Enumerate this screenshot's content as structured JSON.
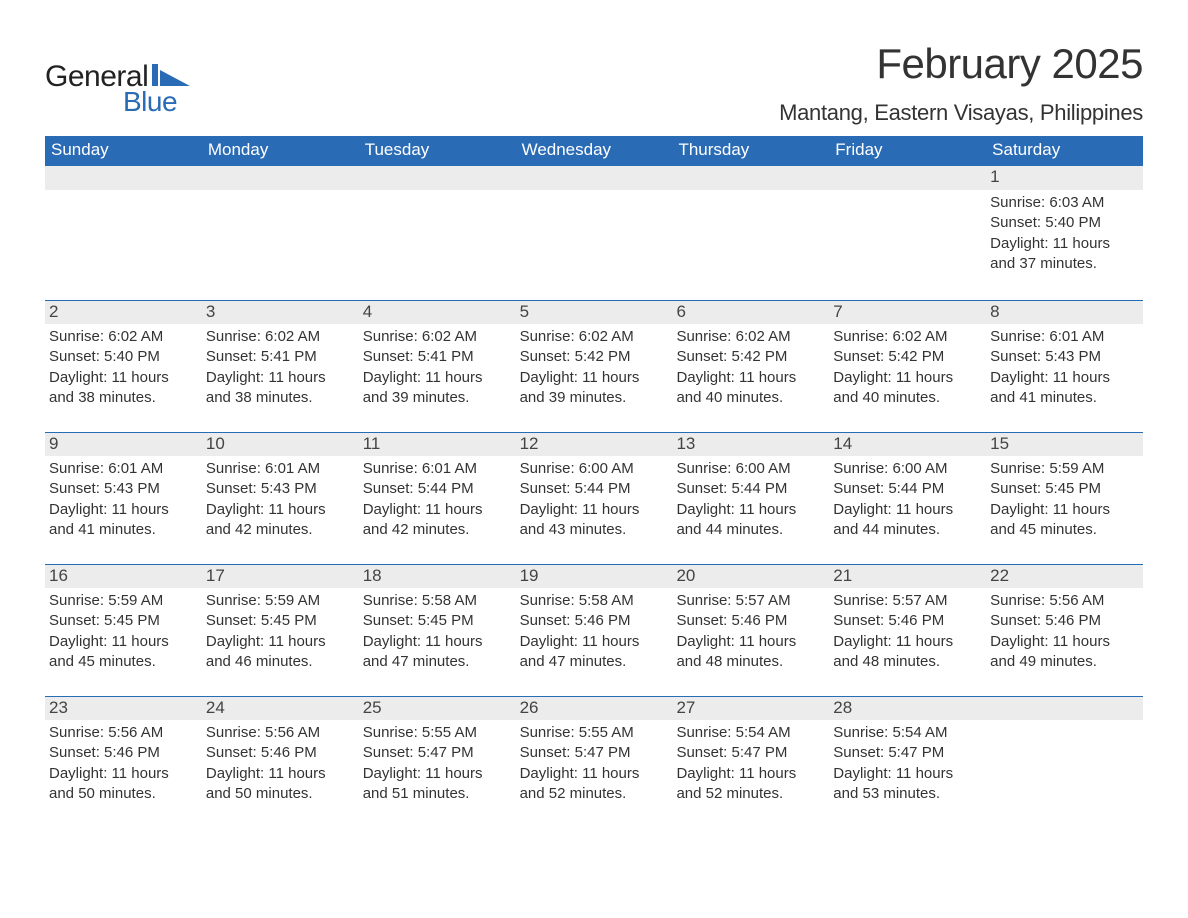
{
  "logo": {
    "general": "General",
    "blue": "Blue"
  },
  "title": "February 2025",
  "location": "Mantang, Eastern Visayas, Philippines",
  "colors": {
    "header_bg": "#2a6bb5",
    "header_text": "#ffffff",
    "row_border": "#2a6bb5",
    "daynum_bg": "#ececec",
    "text": "#333333",
    "page_bg": "#ffffff"
  },
  "day_names": [
    "Sunday",
    "Monday",
    "Tuesday",
    "Wednesday",
    "Thursday",
    "Friday",
    "Saturday"
  ],
  "weeks": [
    [
      {
        "n": "",
        "sunrise": "",
        "sunset": "",
        "daylight": ""
      },
      {
        "n": "",
        "sunrise": "",
        "sunset": "",
        "daylight": ""
      },
      {
        "n": "",
        "sunrise": "",
        "sunset": "",
        "daylight": ""
      },
      {
        "n": "",
        "sunrise": "",
        "sunset": "",
        "daylight": ""
      },
      {
        "n": "",
        "sunrise": "",
        "sunset": "",
        "daylight": ""
      },
      {
        "n": "",
        "sunrise": "",
        "sunset": "",
        "daylight": ""
      },
      {
        "n": "1",
        "sunrise": "Sunrise: 6:03 AM",
        "sunset": "Sunset: 5:40 PM",
        "daylight": "Daylight: 11 hours and 37 minutes."
      }
    ],
    [
      {
        "n": "2",
        "sunrise": "Sunrise: 6:02 AM",
        "sunset": "Sunset: 5:40 PM",
        "daylight": "Daylight: 11 hours and 38 minutes."
      },
      {
        "n": "3",
        "sunrise": "Sunrise: 6:02 AM",
        "sunset": "Sunset: 5:41 PM",
        "daylight": "Daylight: 11 hours and 38 minutes."
      },
      {
        "n": "4",
        "sunrise": "Sunrise: 6:02 AM",
        "sunset": "Sunset: 5:41 PM",
        "daylight": "Daylight: 11 hours and 39 minutes."
      },
      {
        "n": "5",
        "sunrise": "Sunrise: 6:02 AM",
        "sunset": "Sunset: 5:42 PM",
        "daylight": "Daylight: 11 hours and 39 minutes."
      },
      {
        "n": "6",
        "sunrise": "Sunrise: 6:02 AM",
        "sunset": "Sunset: 5:42 PM",
        "daylight": "Daylight: 11 hours and 40 minutes."
      },
      {
        "n": "7",
        "sunrise": "Sunrise: 6:02 AM",
        "sunset": "Sunset: 5:42 PM",
        "daylight": "Daylight: 11 hours and 40 minutes."
      },
      {
        "n": "8",
        "sunrise": "Sunrise: 6:01 AM",
        "sunset": "Sunset: 5:43 PM",
        "daylight": "Daylight: 11 hours and 41 minutes."
      }
    ],
    [
      {
        "n": "9",
        "sunrise": "Sunrise: 6:01 AM",
        "sunset": "Sunset: 5:43 PM",
        "daylight": "Daylight: 11 hours and 41 minutes."
      },
      {
        "n": "10",
        "sunrise": "Sunrise: 6:01 AM",
        "sunset": "Sunset: 5:43 PM",
        "daylight": "Daylight: 11 hours and 42 minutes."
      },
      {
        "n": "11",
        "sunrise": "Sunrise: 6:01 AM",
        "sunset": "Sunset: 5:44 PM",
        "daylight": "Daylight: 11 hours and 42 minutes."
      },
      {
        "n": "12",
        "sunrise": "Sunrise: 6:00 AM",
        "sunset": "Sunset: 5:44 PM",
        "daylight": "Daylight: 11 hours and 43 minutes."
      },
      {
        "n": "13",
        "sunrise": "Sunrise: 6:00 AM",
        "sunset": "Sunset: 5:44 PM",
        "daylight": "Daylight: 11 hours and 44 minutes."
      },
      {
        "n": "14",
        "sunrise": "Sunrise: 6:00 AM",
        "sunset": "Sunset: 5:44 PM",
        "daylight": "Daylight: 11 hours and 44 minutes."
      },
      {
        "n": "15",
        "sunrise": "Sunrise: 5:59 AM",
        "sunset": "Sunset: 5:45 PM",
        "daylight": "Daylight: 11 hours and 45 minutes."
      }
    ],
    [
      {
        "n": "16",
        "sunrise": "Sunrise: 5:59 AM",
        "sunset": "Sunset: 5:45 PM",
        "daylight": "Daylight: 11 hours and 45 minutes."
      },
      {
        "n": "17",
        "sunrise": "Sunrise: 5:59 AM",
        "sunset": "Sunset: 5:45 PM",
        "daylight": "Daylight: 11 hours and 46 minutes."
      },
      {
        "n": "18",
        "sunrise": "Sunrise: 5:58 AM",
        "sunset": "Sunset: 5:45 PM",
        "daylight": "Daylight: 11 hours and 47 minutes."
      },
      {
        "n": "19",
        "sunrise": "Sunrise: 5:58 AM",
        "sunset": "Sunset: 5:46 PM",
        "daylight": "Daylight: 11 hours and 47 minutes."
      },
      {
        "n": "20",
        "sunrise": "Sunrise: 5:57 AM",
        "sunset": "Sunset: 5:46 PM",
        "daylight": "Daylight: 11 hours and 48 minutes."
      },
      {
        "n": "21",
        "sunrise": "Sunrise: 5:57 AM",
        "sunset": "Sunset: 5:46 PM",
        "daylight": "Daylight: 11 hours and 48 minutes."
      },
      {
        "n": "22",
        "sunrise": "Sunrise: 5:56 AM",
        "sunset": "Sunset: 5:46 PM",
        "daylight": "Daylight: 11 hours and 49 minutes."
      }
    ],
    [
      {
        "n": "23",
        "sunrise": "Sunrise: 5:56 AM",
        "sunset": "Sunset: 5:46 PM",
        "daylight": "Daylight: 11 hours and 50 minutes."
      },
      {
        "n": "24",
        "sunrise": "Sunrise: 5:56 AM",
        "sunset": "Sunset: 5:46 PM",
        "daylight": "Daylight: 11 hours and 50 minutes."
      },
      {
        "n": "25",
        "sunrise": "Sunrise: 5:55 AM",
        "sunset": "Sunset: 5:47 PM",
        "daylight": "Daylight: 11 hours and 51 minutes."
      },
      {
        "n": "26",
        "sunrise": "Sunrise: 5:55 AM",
        "sunset": "Sunset: 5:47 PM",
        "daylight": "Daylight: 11 hours and 52 minutes."
      },
      {
        "n": "27",
        "sunrise": "Sunrise: 5:54 AM",
        "sunset": "Sunset: 5:47 PM",
        "daylight": "Daylight: 11 hours and 52 minutes."
      },
      {
        "n": "28",
        "sunrise": "Sunrise: 5:54 AM",
        "sunset": "Sunset: 5:47 PM",
        "daylight": "Daylight: 11 hours and 53 minutes."
      },
      {
        "n": "",
        "sunrise": "",
        "sunset": "",
        "daylight": ""
      }
    ]
  ]
}
